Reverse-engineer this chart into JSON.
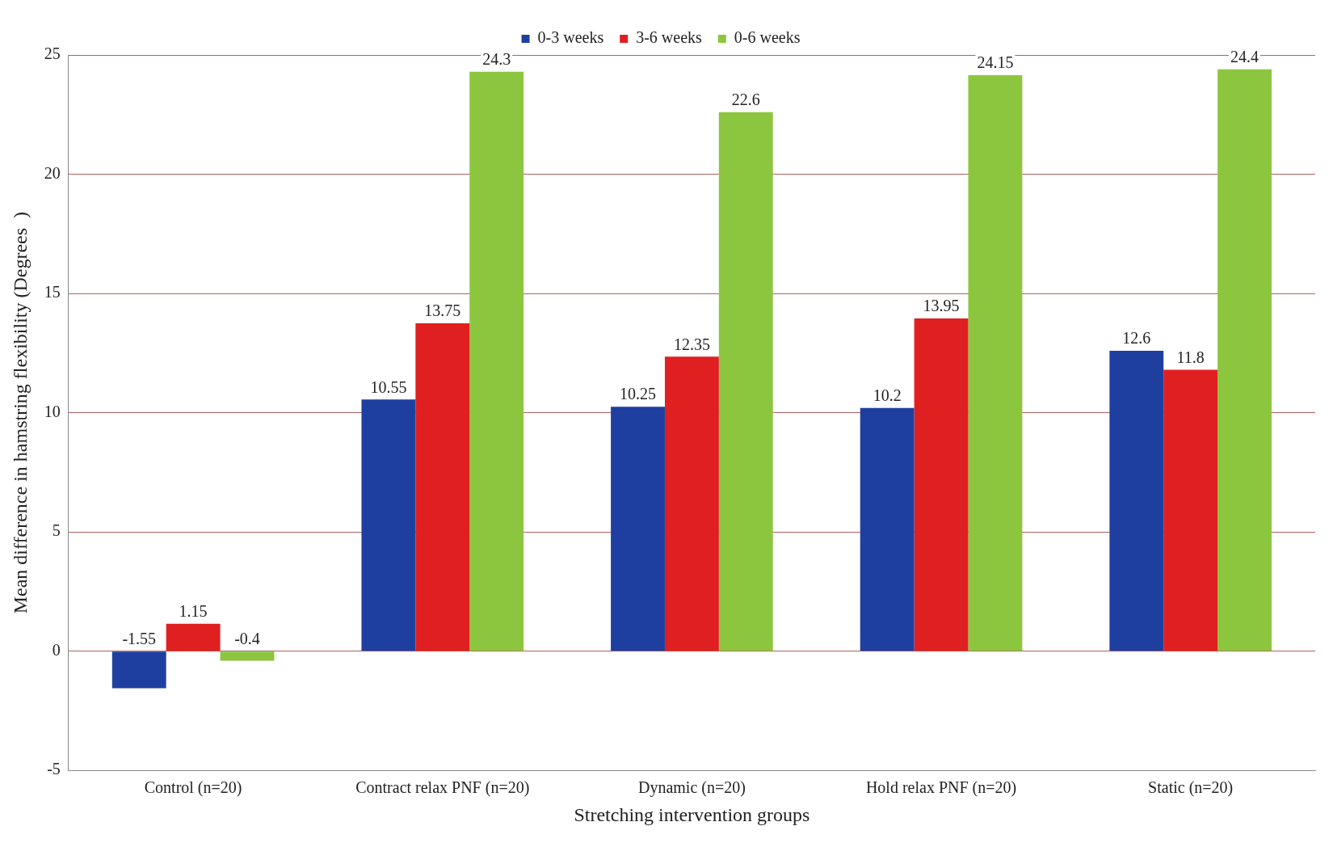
{
  "chart_data": {
    "type": "bar",
    "xlabel": "Stretching intervention groups",
    "ylabel": "Mean difference in hamstring flexibility (Degrees  )",
    "categories": [
      "Control (n=20)",
      "Contract relax PNF (n=20)",
      "Dynamic (n=20)",
      "Hold relax PNF (n=20)",
      "Static (n=20)"
    ],
    "series": [
      {
        "name": "0-3 weeks",
        "color": "#1f3fa0",
        "values": [
          -1.55,
          10.55,
          10.25,
          10.2,
          12.6
        ]
      },
      {
        "name": "3-6 weeks",
        "color": "#e02020",
        "values": [
          1.15,
          13.75,
          12.35,
          13.95,
          11.8
        ]
      },
      {
        "name": "0-6 weeks",
        "color": "#8cc63f",
        "values": [
          -0.4,
          24.3,
          22.6,
          24.15,
          24.4
        ]
      }
    ],
    "ylim": [
      -5,
      25
    ],
    "yticks": [
      -5,
      0,
      5,
      10,
      15,
      20,
      25
    ],
    "grid": "y",
    "legend": "top",
    "data_labels": true
  }
}
